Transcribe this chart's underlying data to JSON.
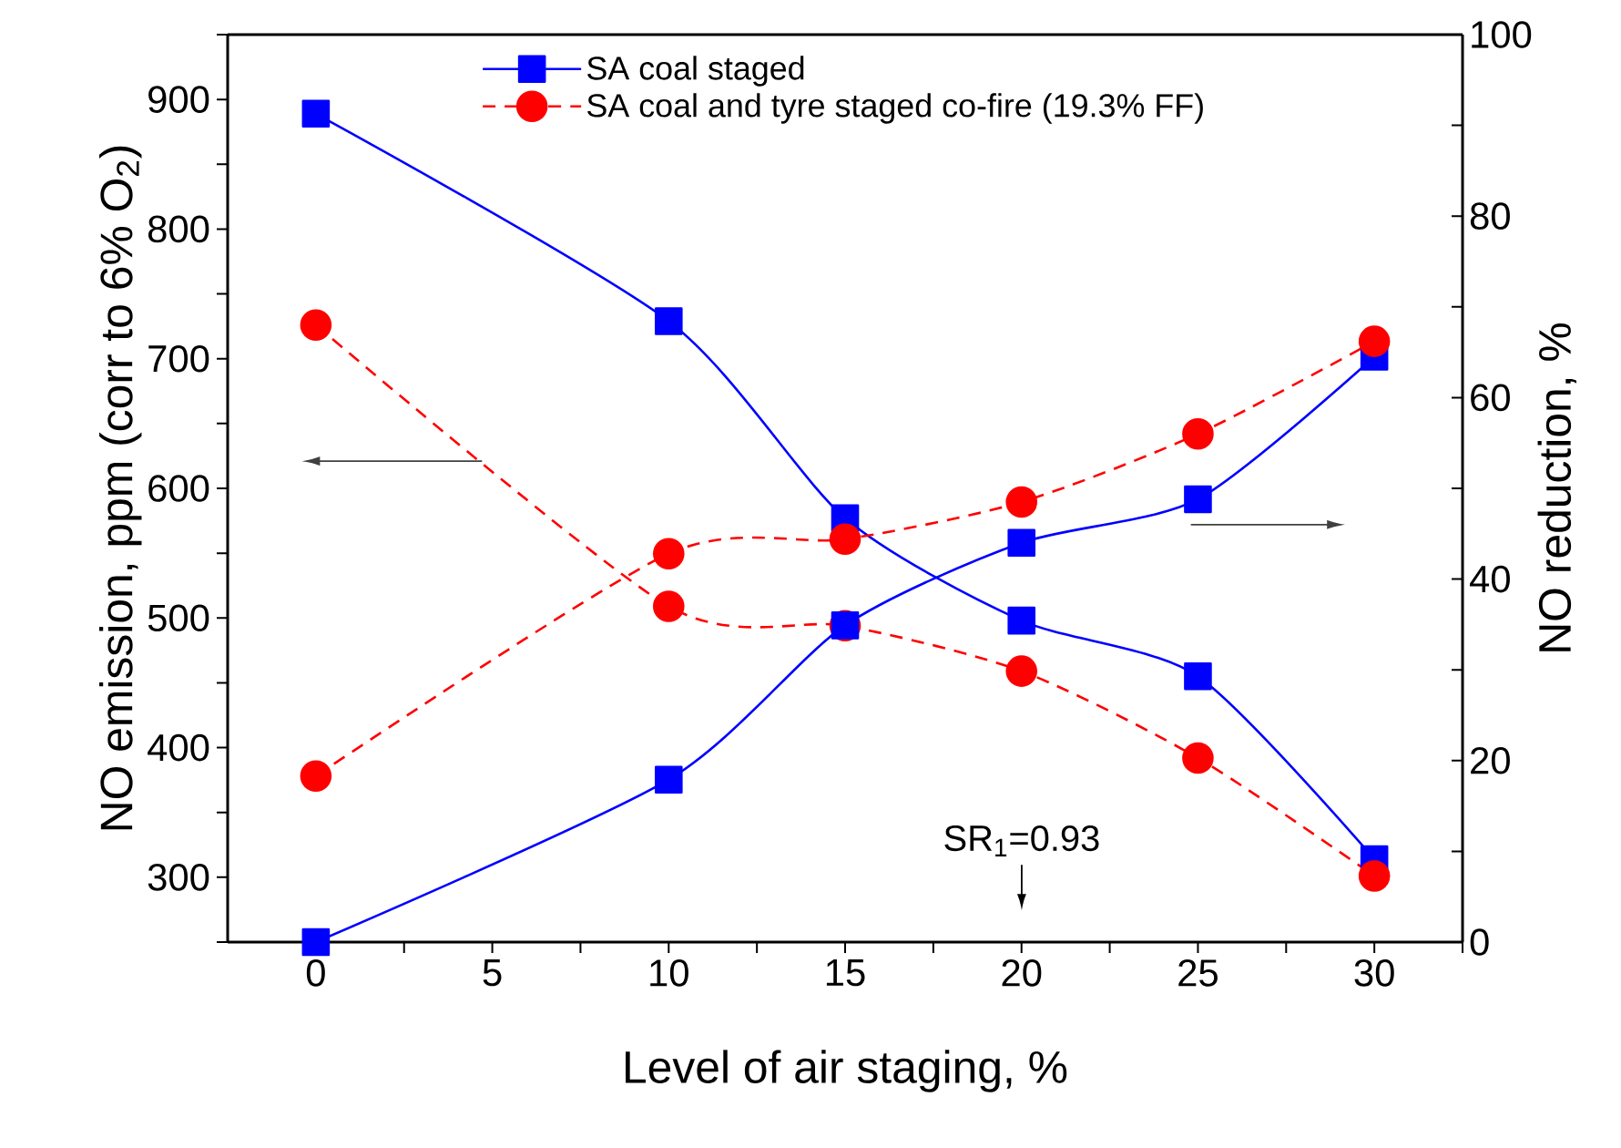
{
  "chart_data": {
    "type": "line",
    "xlabel": "Level of air staging, %",
    "ylabel": "NO emission, ppm (corr to 6% O$_{2}$)",
    "y2label": "NO reduction, %",
    "x": [
      0,
      10,
      15,
      20,
      25,
      30
    ],
    "xlim": [
      -2.5,
      32.5
    ],
    "xticks": [
      0,
      {
        "value": 2.5,
        "label": null
      },
      5,
      {
        "value": 7.5,
        "label": null
      },
      10,
      {
        "value": 12.5,
        "label": null
      },
      15,
      {
        "value": 17.5,
        "label": null
      },
      20,
      {
        "value": 22.5,
        "label": null
      },
      25,
      {
        "value": 27.5,
        "label": null
      },
      30,
      {
        "value": 32.5,
        "label": null
      }
    ],
    "ylim": [
      250,
      950
    ],
    "yticks": [
      {
        "value": 250,
        "label": null
      },
      300,
      {
        "value": 350,
        "label": null
      },
      400,
      {
        "value": 450,
        "label": null
      },
      500,
      {
        "value": 550,
        "label": null
      },
      600,
      {
        "value": 650,
        "label": null
      },
      700,
      {
        "value": 750,
        "label": null
      },
      800,
      {
        "value": 850,
        "label": null
      },
      900,
      {
        "value": 950,
        "label": null
      }
    ],
    "y2lim": [
      0,
      100
    ],
    "y2ticks": [
      0,
      {
        "value": 10,
        "label": null
      },
      20,
      {
        "value": 30,
        "label": null
      },
      40,
      {
        "value": 50,
        "label": null
      },
      60,
      {
        "value": 70,
        "label": null
      },
      80,
      {
        "value": 90,
        "label": null
      },
      100
    ],
    "legend": "top",
    "series": [
      {
        "name": "SA coal staged",
        "color": "#0000ff",
        "marker": "square",
        "line_style": "solid",
        "axis": "y",
        "values": [
          889,
          729,
          577,
          498,
          455,
          314
        ]
      },
      {
        "name": "SA coal and tyre staged co-fire (19.3% FF)",
        "color": "#ff0000",
        "marker": "circle",
        "line_style": "dashed",
        "axis": "y",
        "values": [
          726,
          509,
          494,
          459,
          392,
          301
        ]
      },
      {
        "color": "#0000ff",
        "marker": "square",
        "line_style": "solid",
        "axis": "y2",
        "values": [
          0,
          17.9,
          34.9,
          44.0,
          48.8,
          64.5
        ]
      },
      {
        "color": "#ff0000",
        "marker": "circle",
        "line_style": "dashed",
        "axis": "y2",
        "values": [
          18.3,
          42.8,
          44.4,
          48.5,
          56.0,
          66.2
        ]
      }
    ],
    "annotations": [
      "SR$_{1}$=0.93"
    ]
  }
}
